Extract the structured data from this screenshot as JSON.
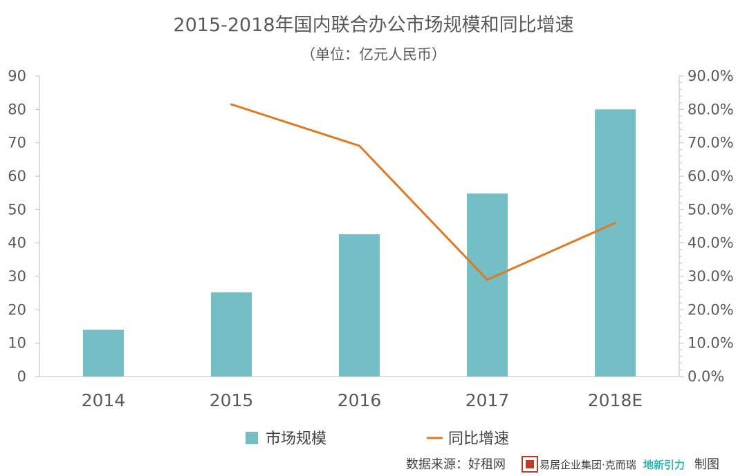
{
  "chart_data": {
    "type": "bar",
    "title": "2015-2018年国内联合办公市场规模和同比增速",
    "subtitle": "（单位：亿元人民币）",
    "categories": [
      "2014",
      "2015",
      "2016",
      "2017",
      "2018E"
    ],
    "series": [
      {
        "name": "市场规模",
        "type": "bar",
        "axis": "left",
        "color": "#74bfc5",
        "values": [
          14,
          25.2,
          42.6,
          54.8,
          80
        ]
      },
      {
        "name": "同比增速",
        "type": "line",
        "axis": "right",
        "color": "#e07a22",
        "values": [
          null,
          81.5,
          69.1,
          29,
          46
        ]
      }
    ],
    "ylim_left": [
      0,
      90
    ],
    "yticks_left": [
      "0",
      "10",
      "20",
      "30",
      "40",
      "50",
      "60",
      "70",
      "80",
      "90"
    ],
    "ylim_right": [
      0,
      90
    ],
    "yticks_right": [
      "0.0%",
      "10.0%",
      "20.0%",
      "30.0%",
      "40.0%",
      "50.0%",
      "60.0%",
      "70.0%",
      "80.0%",
      "90.0%"
    ],
    "grid": false,
    "legend_position": "bottom"
  },
  "source": {
    "text": "数据来源：好租网",
    "org": "易居企业集团·克而瑞",
    "logo_text": "地新引力",
    "suffix": "制图"
  }
}
